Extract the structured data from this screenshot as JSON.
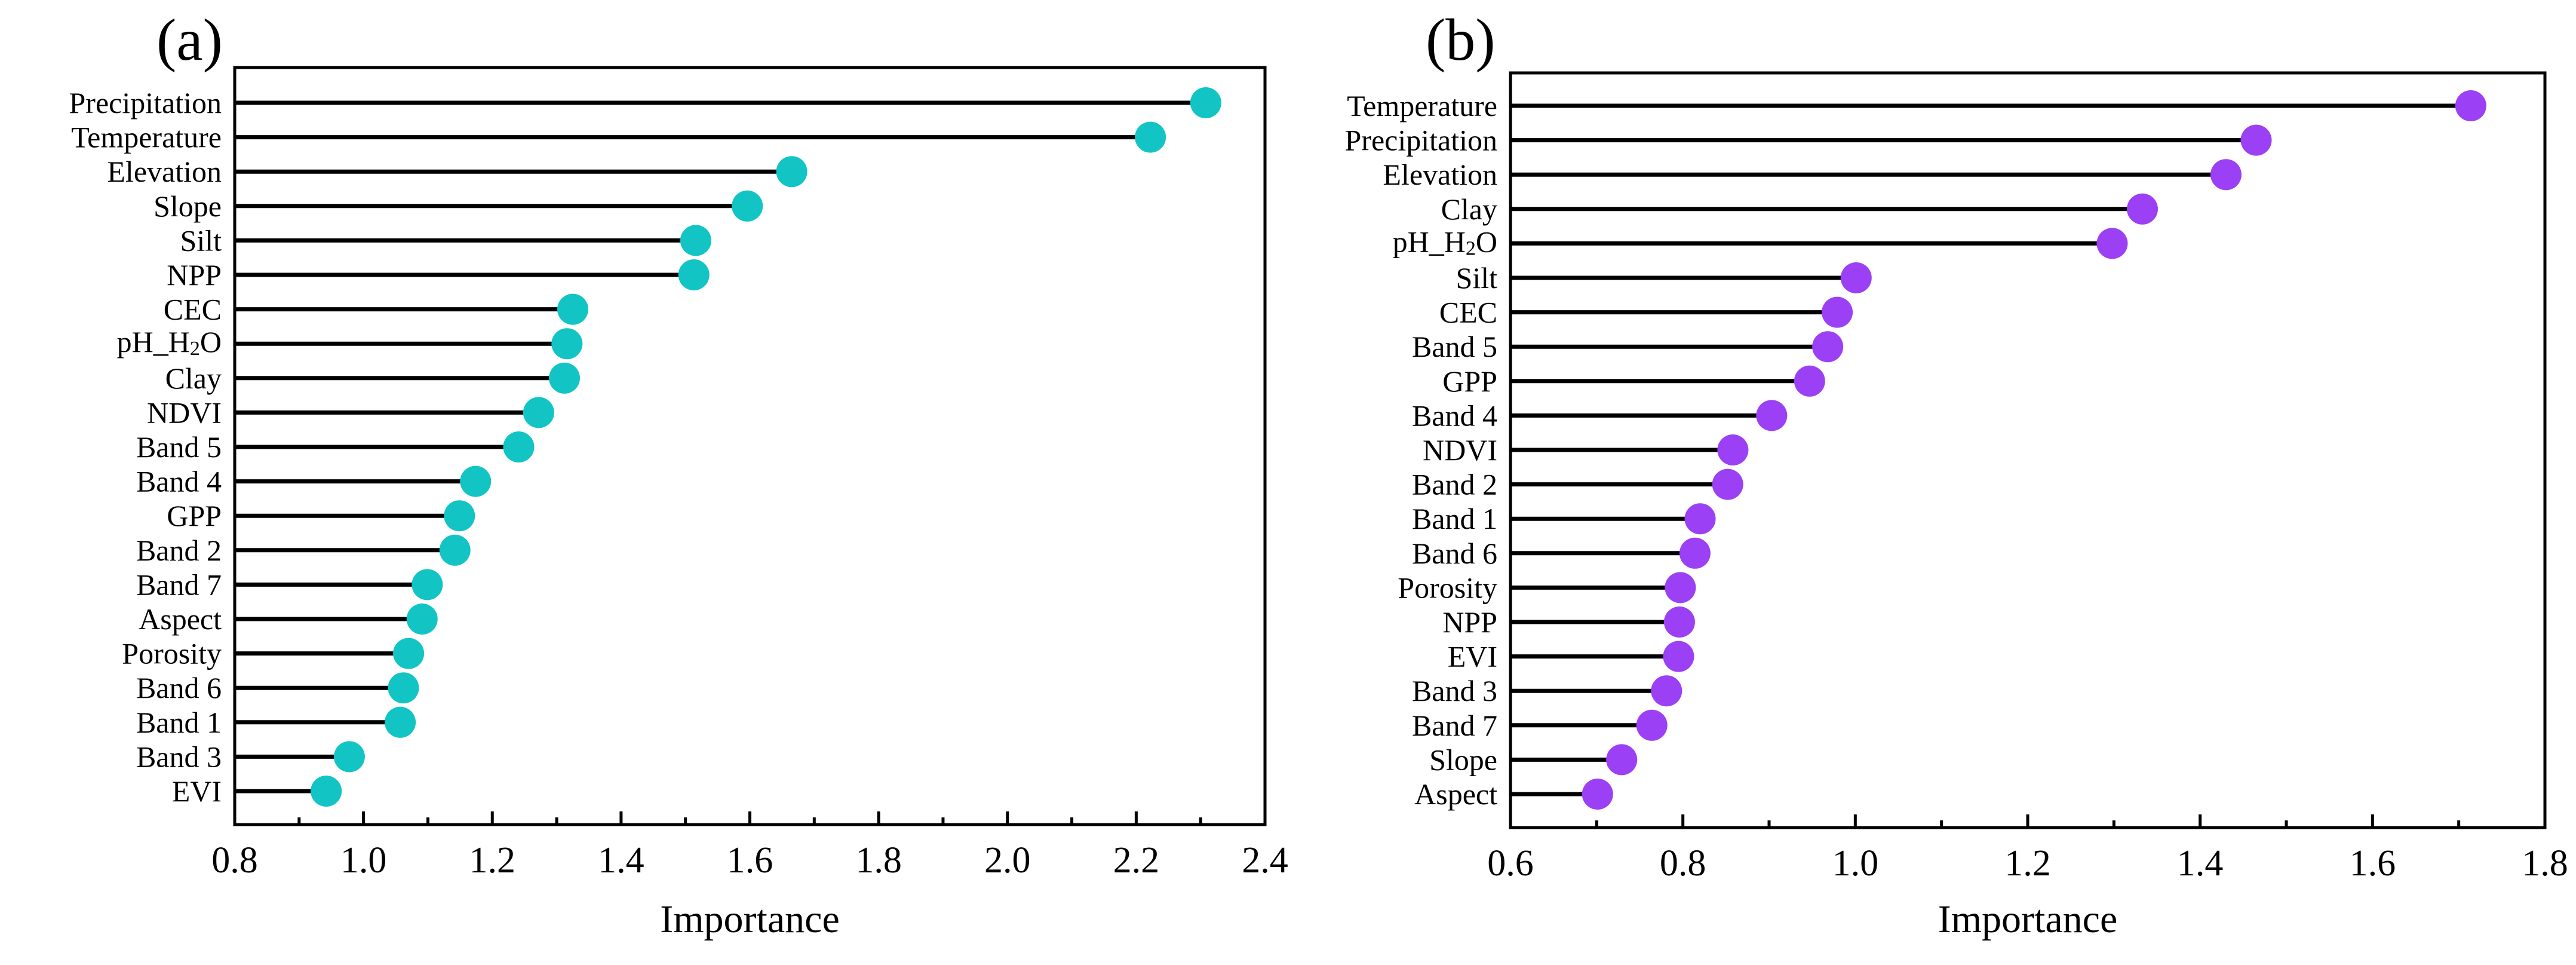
{
  "chart_data": [
    {
      "type": "lollipop",
      "panel_label": "(a)",
      "title": "",
      "xlabel": "Importance",
      "ylabel": "",
      "xlim": [
        0.8,
        2.4
      ],
      "xticks": [
        "0.8",
        "1.0",
        "1.2",
        "1.4",
        "1.6",
        "1.8",
        "2.0",
        "2.2",
        "2.4"
      ],
      "color": "#13C4C4",
      "categories": [
        "Precipitation",
        "Temperature",
        "Elevation",
        "Slope",
        "Silt",
        "NPP",
        "CEC",
        "pH_H2O",
        "Clay",
        "NDVI",
        "Band 5",
        "Band 4",
        "GPP",
        "Band 2",
        "Band 7",
        "Aspect",
        "Porosity",
        "Band 6",
        "Band 1",
        "Band 3",
        "EVI"
      ],
      "values": [
        2.308,
        2.222,
        1.665,
        1.596,
        1.516,
        1.513,
        1.325,
        1.316,
        1.312,
        1.272,
        1.241,
        1.174,
        1.149,
        1.142,
        1.099,
        1.091,
        1.07,
        1.062,
        1.057,
        0.978,
        0.942
      ]
    },
    {
      "type": "lollipop",
      "panel_label": "(b)",
      "title": "",
      "xlabel": "Importance",
      "ylabel": "",
      "xlim": [
        0.6,
        1.8
      ],
      "xticks": [
        "0.6",
        "0.8",
        "1.0",
        "1.2",
        "1.4",
        "1.6",
        "1.8"
      ],
      "color": "#9B40F5",
      "categories": [
        "Temperature",
        "Precipitation",
        "Elevation",
        "Clay",
        "pH_H2O",
        "Silt",
        "CEC",
        "Band 5",
        "GPP",
        "Band 4",
        "NDVI",
        "Band 2",
        "Band 1",
        "Band 6",
        "Porosity",
        "NPP",
        "EVI",
        "Band 3",
        "Band 7",
        "Slope",
        "Aspect"
      ],
      "values": [
        1.714,
        1.465,
        1.43,
        1.333,
        1.298,
        1.001,
        0.979,
        0.968,
        0.947,
        0.903,
        0.858,
        0.852,
        0.82,
        0.814,
        0.797,
        0.796,
        0.795,
        0.781,
        0.764,
        0.729,
        0.701
      ]
    }
  ]
}
